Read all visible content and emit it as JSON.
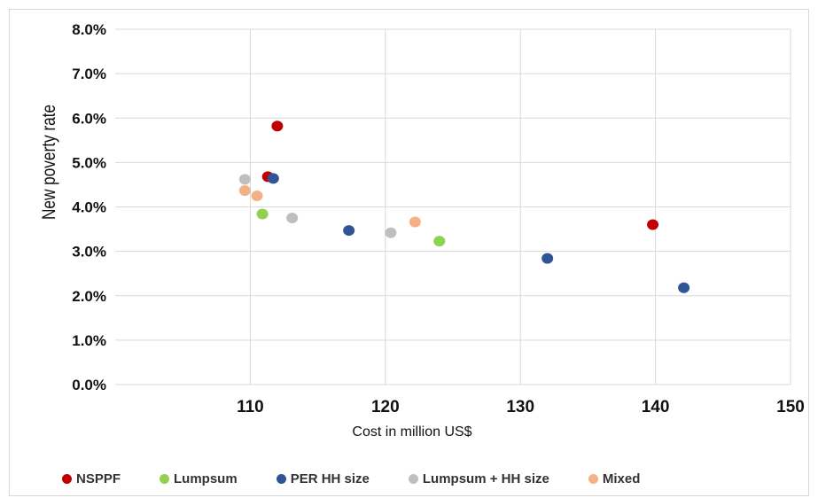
{
  "chart_data": {
    "type": "scatter",
    "xlabel": "Cost in million US$",
    "ylabel": "New poverty rate",
    "xlim": [
      100,
      150
    ],
    "ylim": [
      0,
      8
    ],
    "x_ticks": [
      "110",
      "120",
      "130",
      "140",
      "150"
    ],
    "y_ticks": [
      "0.0%",
      "1.0%",
      "2.0%",
      "3.0%",
      "4.0%",
      "5.0%",
      "6.0%",
      "7.0%",
      "8.0%"
    ],
    "grid": true,
    "legend_position": "bottom",
    "series": [
      {
        "name": "NSPPF",
        "color": "#c00000",
        "points": [
          [
            112.0,
            5.82
          ],
          [
            111.3,
            4.68
          ],
          [
            139.8,
            3.6
          ]
        ]
      },
      {
        "name": "Lumpsum",
        "color": "#92d050",
        "points": [
          [
            110.9,
            3.84
          ],
          [
            124.0,
            3.23
          ]
        ]
      },
      {
        "name": "PER HH size",
        "color": "#2f5597",
        "points": [
          [
            111.7,
            4.64
          ],
          [
            117.3,
            3.47
          ],
          [
            132.0,
            2.84
          ],
          [
            142.1,
            2.18
          ]
        ]
      },
      {
        "name": "Lumpsum + HH size",
        "color": "#bfbfbf",
        "points": [
          [
            109.6,
            4.62
          ],
          [
            113.1,
            3.75
          ],
          [
            120.4,
            3.42
          ]
        ]
      },
      {
        "name": "Mixed",
        "color": "#f4b183",
        "points": [
          [
            109.6,
            4.37
          ],
          [
            110.5,
            4.25
          ],
          [
            122.2,
            3.66
          ]
        ]
      }
    ]
  }
}
